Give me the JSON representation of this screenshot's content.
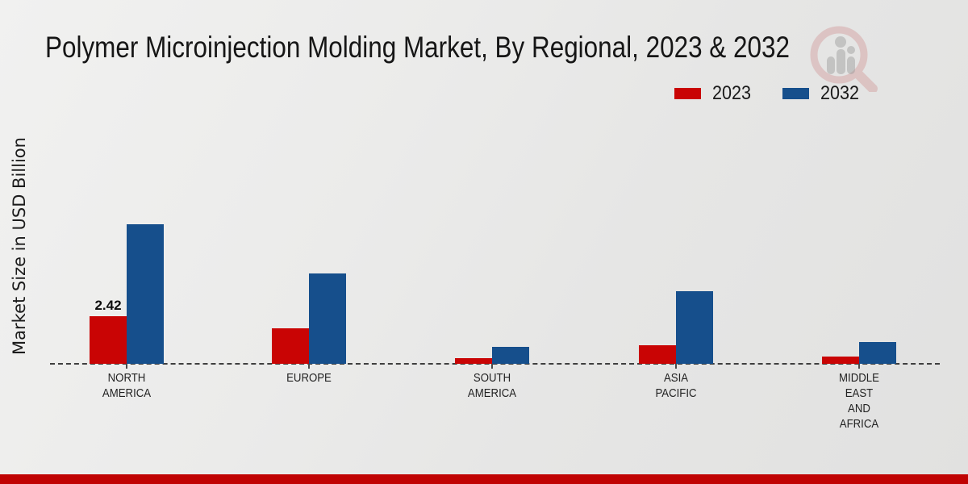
{
  "page": {
    "title": "Polymer Microinjection Molding Market, By Regional, 2023 & 2032",
    "ylabel": "Market Size in USD Billion"
  },
  "legend": {
    "position": "top-right",
    "items": [
      {
        "label": "2023",
        "color": "#c90404"
      },
      {
        "label": "2032",
        "color": "#164f8c"
      }
    ]
  },
  "chart_data": {
    "type": "bar",
    "title": "Polymer Microinjection Molding Market, By Regional, 2023 & 2032",
    "xlabel": "",
    "ylabel": "Market Size in USD Billion",
    "categories": [
      "NORTH AMERICA",
      "EUROPE",
      "SOUTH AMERICA",
      "ASIA PACIFIC",
      "MIDDLE EAST AND AFRICA"
    ],
    "series": [
      {
        "name": "2023",
        "color": "#c90404",
        "values": [
          2.42,
          1.8,
          0.3,
          0.95,
          0.37
        ]
      },
      {
        "name": "2032",
        "color": "#164f8c",
        "values": [
          7.1,
          4.6,
          0.85,
          3.7,
          1.1
        ]
      }
    ],
    "annotations": [
      {
        "series": "2023",
        "category": "NORTH AMERICA",
        "text": "2.42"
      }
    ],
    "ylim": [
      0,
      7.5
    ],
    "grid": "off",
    "axis_style": "dashed-zero-baseline",
    "legend_position": "top-right"
  },
  "footer": {
    "accent_color": "#c00303"
  },
  "watermark": {
    "name": "magnifier-bars-logo",
    "ring_color": "#c05050",
    "bars_color": "#9a9a9a"
  }
}
